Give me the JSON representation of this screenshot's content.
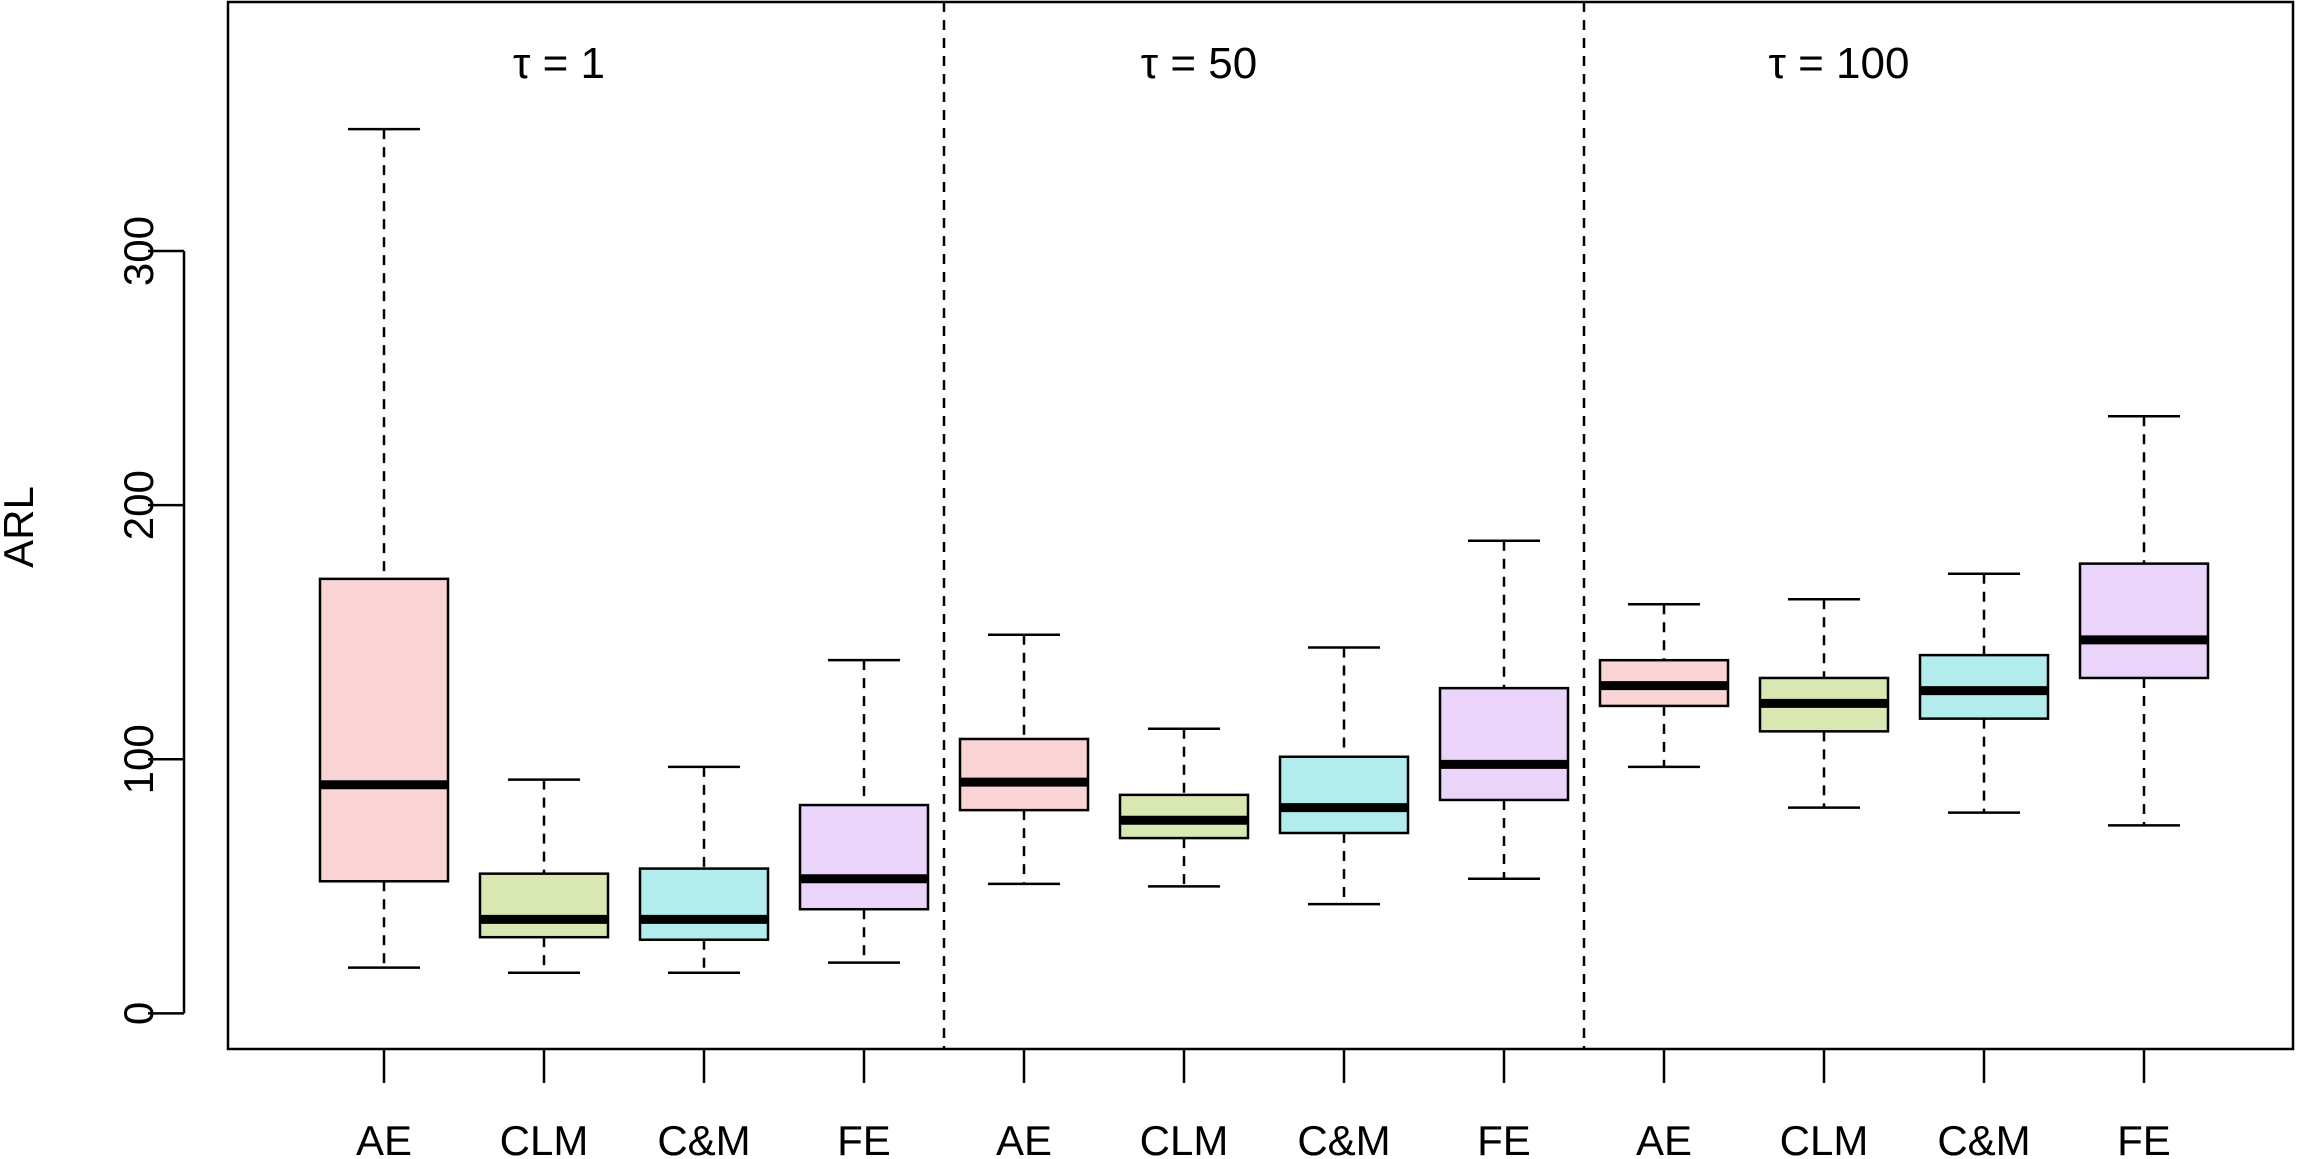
{
  "chart_data": {
    "type": "boxplot",
    "ylabel": "ARL",
    "ylim": [
      -14,
      398
    ],
    "yticks": [
      0,
      100,
      200,
      300
    ],
    "ytick_labels": [
      "0",
      "100",
      "200",
      "300"
    ],
    "grid": false,
    "legend": "none",
    "categories": [
      "AE",
      "CLM",
      "C&M",
      "FE",
      "AE",
      "CLM",
      "C&M",
      "FE",
      "AE",
      "CLM",
      "C&M",
      "FE"
    ],
    "groups": [
      {
        "label": "τ = 1",
        "start": 1,
        "end": 4
      },
      {
        "label": "τ = 50",
        "start": 5,
        "end": 8
      },
      {
        "label": "τ = 100",
        "start": 9,
        "end": 12
      }
    ],
    "colors": {
      "AE": "#fad4d4",
      "CLM": "#d9e8b3",
      "C&M": "#b3ecec",
      "FE": "#ead4fa"
    },
    "boxes": [
      {
        "label": "AE",
        "min": 18,
        "q1": 52,
        "median": 90,
        "q3": 171,
        "max": 348
      },
      {
        "label": "CLM",
        "min": 16,
        "q1": 30,
        "median": 37,
        "q3": 55,
        "max": 92
      },
      {
        "label": "C&M",
        "min": 16,
        "q1": 29,
        "median": 37,
        "q3": 57,
        "max": 97
      },
      {
        "label": "FE",
        "min": 20,
        "q1": 41,
        "median": 53,
        "q3": 82,
        "max": 139
      },
      {
        "label": "AE",
        "min": 51,
        "q1": 80,
        "median": 91,
        "q3": 108,
        "max": 149
      },
      {
        "label": "CLM",
        "min": 50,
        "q1": 69,
        "median": 76,
        "q3": 86,
        "max": 112
      },
      {
        "label": "C&M",
        "min": 43,
        "q1": 71,
        "median": 81,
        "q3": 101,
        "max": 144
      },
      {
        "label": "FE",
        "min": 53,
        "q1": 84,
        "median": 98,
        "q3": 128,
        "max": 186
      },
      {
        "label": "AE",
        "min": 97,
        "q1": 121,
        "median": 129,
        "q3": 139,
        "max": 161
      },
      {
        "label": "CLM",
        "min": 81,
        "q1": 111,
        "median": 122,
        "q3": 132,
        "max": 163
      },
      {
        "label": "C&M",
        "min": 79,
        "q1": 116,
        "median": 127,
        "q3": 141,
        "max": 173
      },
      {
        "label": "FE",
        "min": 74,
        "q1": 132,
        "median": 147,
        "q3": 177,
        "max": 235
      }
    ]
  }
}
